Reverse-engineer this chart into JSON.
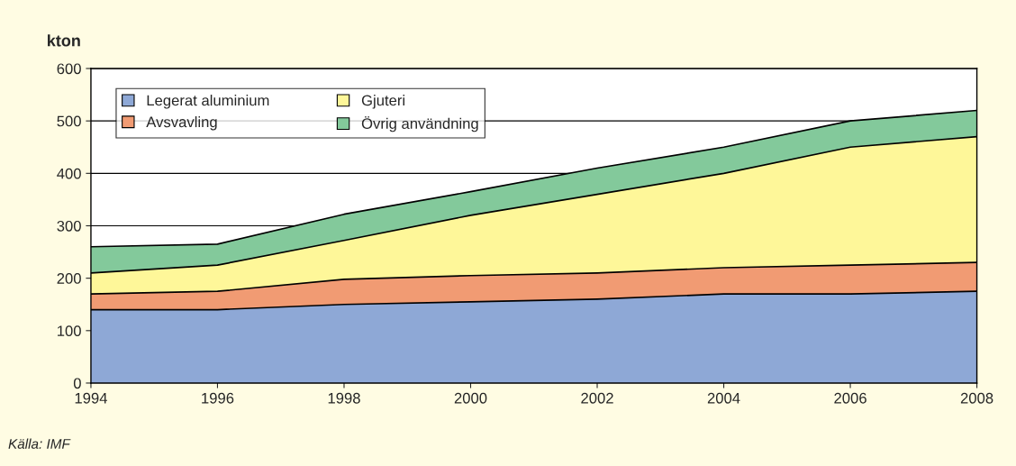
{
  "chart_data": {
    "type": "area",
    "stacked": true,
    "ylabel": "kton",
    "annotations": [
      "Källa: IMF"
    ],
    "x": [
      1994,
      1996,
      1998,
      2000,
      2002,
      2004,
      2006,
      2008
    ],
    "series": [
      {
        "name": "Legerat aluminium",
        "color": "#8ea8d6",
        "values": [
          140,
          140,
          150,
          155,
          160,
          170,
          170,
          175
        ]
      },
      {
        "name": "Avsvavling",
        "color": "#f19b73",
        "values": [
          30,
          35,
          48,
          50,
          50,
          50,
          55,
          55
        ]
      },
      {
        "name": "Gjuteri",
        "color": "#fef799",
        "values": [
          40,
          50,
          74,
          115,
          150,
          180,
          225,
          240
        ]
      },
      {
        "name": "Övrig användning",
        "color": "#83c99b",
        "values": [
          50,
          40,
          50,
          45,
          50,
          50,
          50,
          50
        ]
      }
    ],
    "xlim": [
      1994,
      2008
    ],
    "xticks": [
      1994,
      1996,
      1998,
      2000,
      2002,
      2004,
      2006,
      2008
    ],
    "ylim": [
      0,
      600
    ],
    "yticks": [
      0,
      100,
      200,
      300,
      400,
      500,
      600
    ],
    "grid": "y",
    "legend": "top left"
  }
}
